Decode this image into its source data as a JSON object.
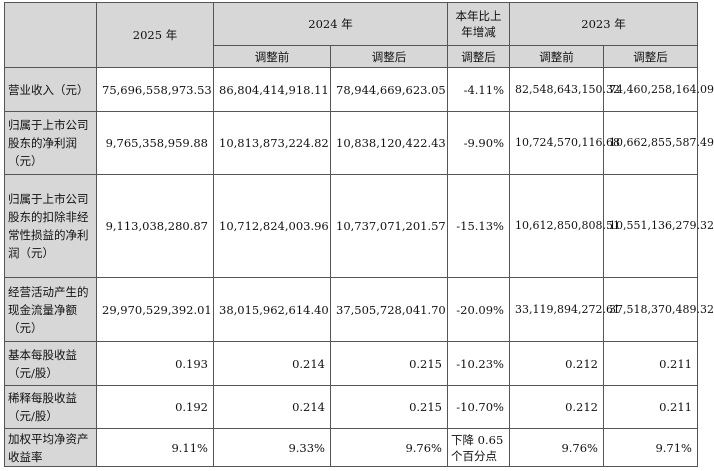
{
  "headers": {
    "y2025": "2025 年",
    "y2024": "2024 年",
    "yoy": "本年比上年增减",
    "y2023": "2023 年",
    "before": "调整前",
    "after": "调整后",
    "after_yoy": "调整后"
  },
  "rows": [
    {
      "label": "营业收入（元）",
      "v2025": "75,696,558,973.53",
      "v2024_before": "86,804,414,918.11",
      "v2024_after": "78,944,669,623.05",
      "yoy": "-4.11%",
      "v2023_before": "82,548,643,150.32",
      "v2023_after": "74,460,258,164.09"
    },
    {
      "label": "归属于上市公司股东的净利润（元）",
      "v2025": "9,765,358,959.88",
      "v2024_before": "10,813,873,224.82",
      "v2024_after": "10,838,120,422.43",
      "yoy": "-9.90%",
      "v2023_before": "10,724,570,116.68",
      "v2023_after": "10,662,855,587.49"
    },
    {
      "label": "归属于上市公司股东的扣除非经常性损益的净利润（元）",
      "v2025": "9,113,038,280.87",
      "v2024_before": "10,712,824,003.96",
      "v2024_after": "10,737,071,201.57",
      "yoy": "-15.13%",
      "v2023_before": "10,612,850,808.51",
      "v2023_after": "10,551,136,279.32"
    },
    {
      "label": "经营活动产生的现金流量净额（元）",
      "v2025": "29,970,529,392.01",
      "v2024_before": "38,015,962,614.40",
      "v2024_after": "37,505,728,041.70",
      "yoy": "-20.09%",
      "v2023_before": "33,119,894,272.61",
      "v2023_after": "37,518,370,489.32"
    },
    {
      "label": "基本每股收益（元/股）",
      "v2025": "0.193",
      "v2024_before": "0.214",
      "v2024_after": "0.215",
      "yoy": "-10.23%",
      "v2023_before": "0.212",
      "v2023_after": "0.211"
    },
    {
      "label": "稀释每股收益（元/股）",
      "v2025": "0.192",
      "v2024_before": "0.214",
      "v2024_after": "0.215",
      "yoy": "-10.70%",
      "v2023_before": "0.212",
      "v2023_after": "0.211"
    },
    {
      "label": "加权平均净资产收益率",
      "v2025": "9.11%",
      "v2024_before": "9.33%",
      "v2024_after": "9.76%",
      "yoy": "下降 0.65 个百分点",
      "v2023_before": "9.76%",
      "v2023_after": "9.71%"
    }
  ]
}
